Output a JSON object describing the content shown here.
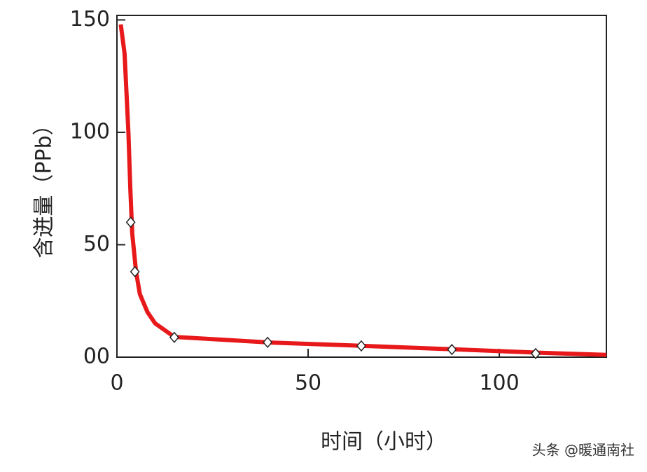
{
  "chart_data": {
    "type": "line",
    "x_label": "时间（小时）",
    "y_label": "含迸量（PPb）",
    "watermark": "头条 @暖通南社",
    "xlim": [
      0,
      128
    ],
    "ylim": [
      0,
      152
    ],
    "xticks": [
      0,
      50,
      100
    ],
    "yticks": [
      {
        "value": 0,
        "label": "00"
      },
      50,
      100,
      150
    ],
    "series": [
      {
        "color": "#e8191b",
        "marker": "none",
        "x": [
          1,
          2,
          3,
          3.5,
          4,
          5,
          6,
          8,
          10,
          15,
          40,
          65,
          88,
          110,
          128
        ],
        "values": [
          148,
          135,
          100,
          75,
          55,
          38,
          28,
          20,
          15,
          9,
          6.5,
          5,
          3.5,
          2,
          1
        ]
      },
      {
        "color": "#ffffff",
        "marker": "diamond",
        "x": [
          3.6,
          4.7,
          15,
          39.4,
          63.9,
          87.6,
          109.5
        ],
        "values": [
          60,
          38,
          8.8,
          6.6,
          5,
          3.4,
          1.6
        ]
      }
    ]
  }
}
